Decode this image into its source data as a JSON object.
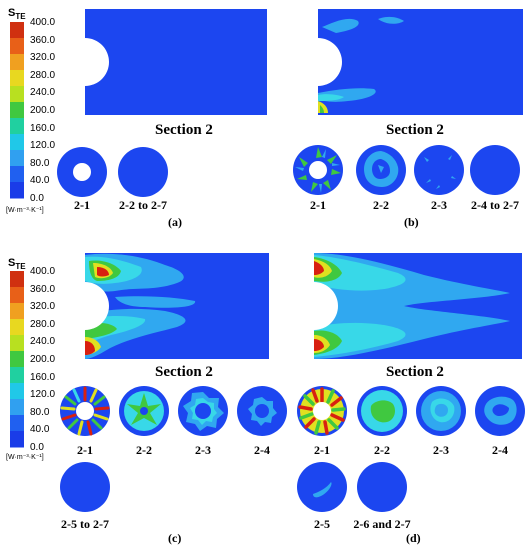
{
  "legend": {
    "title": "S",
    "title_sub": "TE",
    "unit": "[W·m⁻³·K⁻¹]",
    "ticks": [
      "400.0",
      "360.0",
      "320.0",
      "280.0",
      "240.0",
      "200.0",
      "160.0",
      "120.0",
      "80.0",
      "40.0",
      "0.0"
    ],
    "colors": [
      "#d03010",
      "#e86018",
      "#f0a020",
      "#e8d820",
      "#b8e020",
      "#40c840",
      "#20d0a0",
      "#20c8e8",
      "#30a0f0",
      "#2060f0",
      "#1a3ce8"
    ]
  },
  "colors": {
    "base": "#1c46f0",
    "light": "#30a8f0",
    "cyan": "#38d8e8",
    "green": "#40c840",
    "yellow": "#e0e020",
    "red": "#d82010"
  },
  "section_label": "Section 2",
  "panels": {
    "a": {
      "letter": "(a)",
      "circles": [
        "2-1",
        "2-2 to 2-7"
      ]
    },
    "b": {
      "letter": "(b)",
      "circles": [
        "2-1",
        "2-2",
        "2-3",
        "2-4 to 2-7"
      ]
    },
    "c": {
      "letter": "(c)",
      "circles": [
        "2-1",
        "2-2",
        "2-3",
        "2-4",
        "2-5 to 2-7"
      ]
    },
    "d": {
      "letter": "(d)",
      "circles": [
        "2-1",
        "2-2",
        "2-3",
        "2-4",
        "2-5",
        "2-6 and 2-7"
      ]
    }
  }
}
